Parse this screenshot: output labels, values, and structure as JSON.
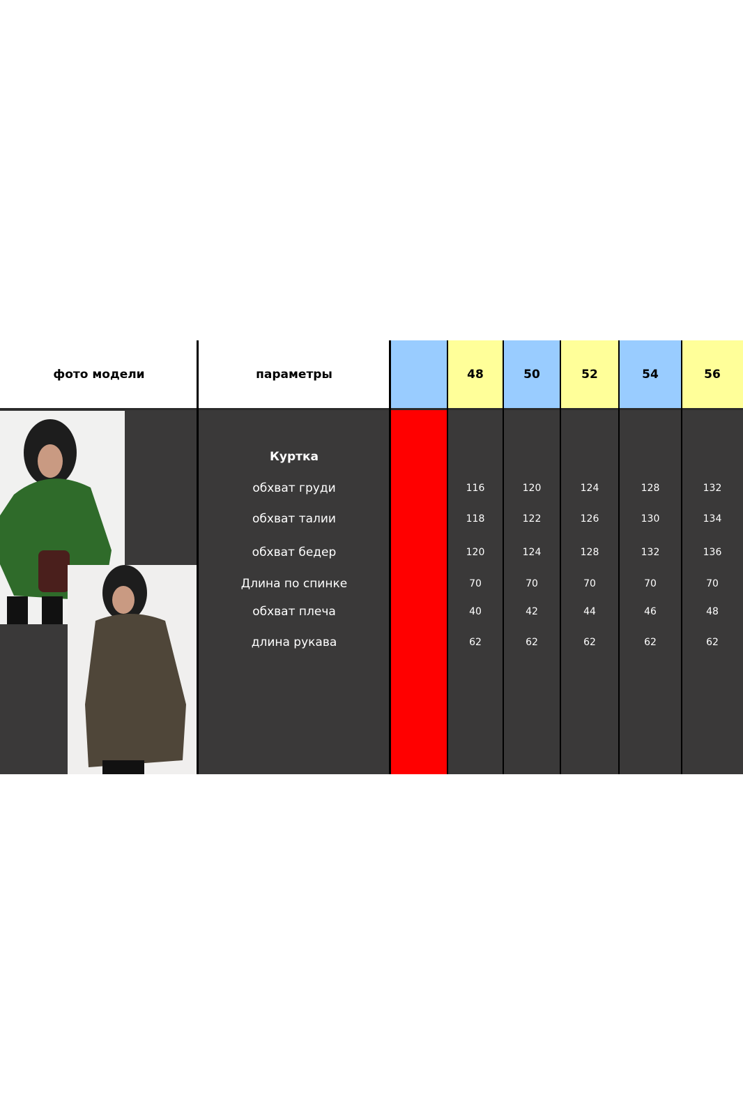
{
  "header": {
    "photo_label": "фото модели",
    "params_label": "параметры",
    "sizes": [
      "48",
      "50",
      "52",
      "54",
      "56"
    ]
  },
  "section_title": "Куртка",
  "rows": [
    {
      "label": "обхват груди",
      "values": [
        "116",
        "120",
        "124",
        "128",
        "132"
      ]
    },
    {
      "label": "обхват талии",
      "values": [
        "118",
        "122",
        "126",
        "130",
        "134"
      ]
    },
    {
      "label": "обхват бедер",
      "values": [
        "120",
        "124",
        "128",
        "132",
        "136"
      ]
    },
    {
      "label": "Длина по спинке",
      "values": [
        "70",
        "70",
        "70",
        "70",
        "70"
      ]
    },
    {
      "label": "обхват плеча",
      "values": [
        "40",
        "42",
        "44",
        "46",
        "48"
      ]
    },
    {
      "label": "длина рукава",
      "values": [
        "62",
        "62",
        "62",
        "62",
        "62"
      ]
    }
  ],
  "colors": {
    "header_blue": "#99ccff",
    "header_yellow": "#ffff99",
    "marker_red": "#ff0000",
    "body_dark": "#3a3939"
  }
}
